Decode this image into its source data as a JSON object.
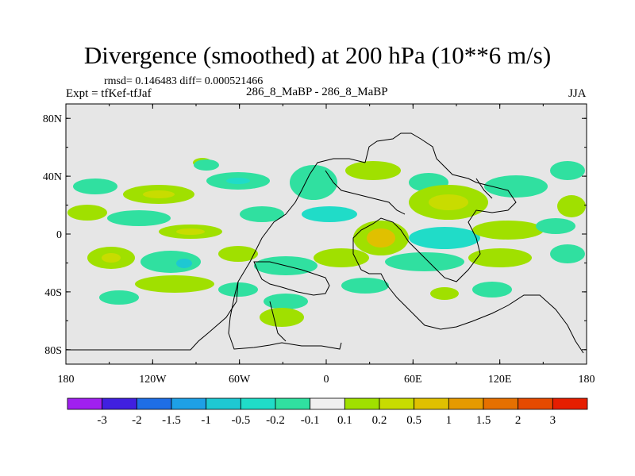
{
  "title": "Divergence (smoothed) at 200 hPa (10**6 m/s)",
  "stats": "rmsd= 0.146483 diff= 0.000521466",
  "experiment": "Expt = tfKef-tfJaf",
  "cases": "286_8_MaBP - 286_8_MaBP",
  "season": "JJA",
  "map": {
    "background": "#e6e6e6",
    "lat_ticks": [
      "80N",
      "40N",
      "0",
      "40S",
      "80S"
    ],
    "lon_ticks": [
      "180",
      "120W",
      "60W",
      "0",
      "60E",
      "120E",
      "180"
    ]
  },
  "colorbar": {
    "colors": [
      "#a020f0",
      "#4020e0",
      "#1e6ee6",
      "#1ea0e6",
      "#1ec8d2",
      "#20dcc8",
      "#30e0a0",
      "#f0f0f0",
      "#a0e000",
      "#c8dc00",
      "#e0c000",
      "#e69a00",
      "#e67000",
      "#e64a00",
      "#e61e00"
    ],
    "labels": [
      "-3",
      "-2",
      "-1.5",
      "-1",
      "-0.5",
      "-0.2",
      "-0.1",
      "0.1",
      "0.2",
      "0.5",
      "1",
      "1.5",
      "2",
      "3"
    ]
  }
}
